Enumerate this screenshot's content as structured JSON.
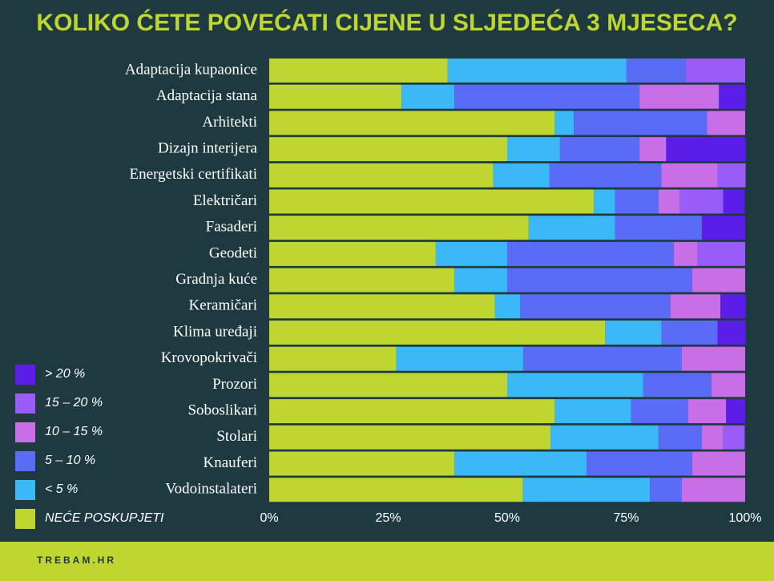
{
  "chart_data": {
    "type": "stacked-bar-horizontal",
    "title": "KOLIKO ĆETE POVEĆATI CIJENE U SLJEDEĆA 3 MJESECA?",
    "categories": [
      "Adaptacija kupaonice",
      "Adaptacija stana",
      "Arhitekti",
      "Dizajn interijera",
      "Energetski certifikati",
      "Električari",
      "Fasaderi",
      "Geodeti",
      "Gradnja kuće",
      "Keramičari",
      "Klima uređaji",
      "Krovopokrivači",
      "Prozori",
      "Soboslikari",
      "Stolari",
      "Knauferi",
      "Vodoinstalateri"
    ],
    "series": [
      {
        "name": "NEĆE POSKUPJETI",
        "color": "#bfd630",
        "values": [
          37.5,
          27.8,
          60,
          50,
          47.1,
          68.2,
          54.5,
          35,
          38.9,
          47.4,
          70.6,
          26.7,
          50,
          60,
          59.1,
          38.9,
          53.3
        ]
      },
      {
        "name": "< 5 %",
        "color": "#3bb8f6",
        "values": [
          37.5,
          11.1,
          4,
          11.1,
          11.8,
          4.5,
          18.2,
          15,
          11.1,
          5.3,
          11.8,
          26.7,
          28.6,
          16,
          22.7,
          27.8,
          26.7
        ]
      },
      {
        "name": "5 – 10 %",
        "color": "#5a6cf6",
        "values": [
          12.5,
          38.9,
          28,
          16.7,
          23.5,
          9.1,
          18.2,
          35,
          38.9,
          31.6,
          11.8,
          33.3,
          14.3,
          12,
          9.1,
          22.2,
          6.7
        ]
      },
      {
        "name": "10 – 15 %",
        "color": "#c86ee6",
        "values": [
          0,
          16.7,
          8,
          5.6,
          11.8,
          4.5,
          0,
          5,
          11.1,
          10.5,
          0,
          13.3,
          7.1,
          8,
          4.5,
          11.1,
          13.3
        ]
      },
      {
        "name": "15 – 20 %",
        "color": "#9a5cf6",
        "values": [
          12.5,
          0,
          0,
          0,
          5.9,
          9.1,
          0,
          10,
          0,
          0,
          0,
          0,
          0,
          0,
          4.5,
          0,
          0
        ]
      },
      {
        "name": "> 20 %",
        "color": "#5a1ee8",
        "values": [
          0,
          5.6,
          0,
          16.7,
          0,
          4.5,
          9.1,
          0,
          0,
          5.3,
          5.9,
          0,
          0,
          4,
          0,
          0,
          0
        ]
      }
    ],
    "xlim": [
      0,
      100
    ],
    "xticks": [
      {
        "value": 0,
        "label": "0%"
      },
      {
        "value": 25,
        "label": "25%"
      },
      {
        "value": 50,
        "label": "50%"
      },
      {
        "value": 75,
        "label": "75%"
      },
      {
        "value": 100,
        "label": "100%"
      }
    ],
    "footer": "TREBAM.HR"
  }
}
